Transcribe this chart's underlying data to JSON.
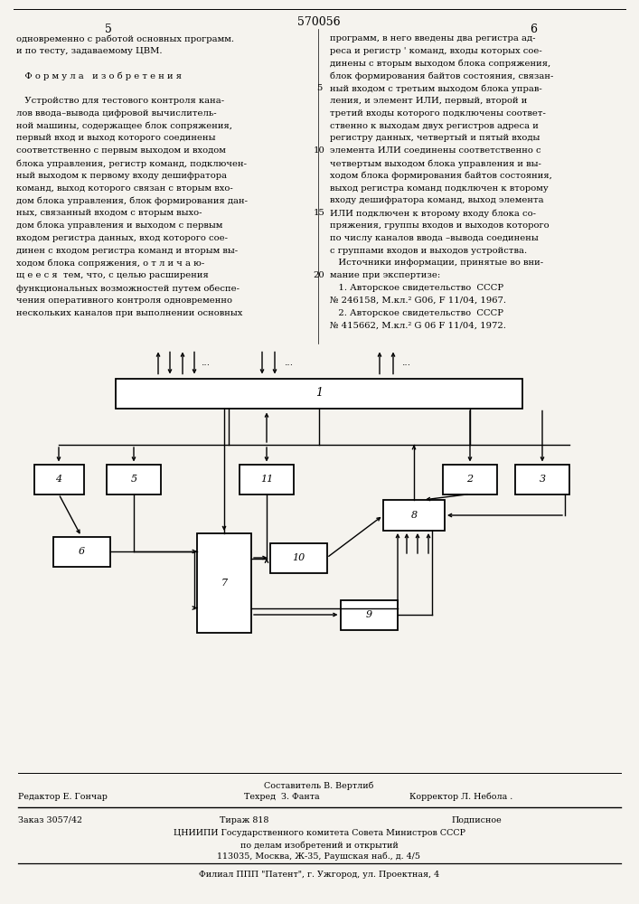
{
  "bg_color": "#f5f3ee",
  "page_number": "570056",
  "page_left": "5",
  "page_right": "6",
  "text_left_col": [
    "одновременно с работой основных программ.",
    "и по тесту, задаваемому ЦВМ.",
    "",
    "   Ф о р м у л а   и з о б р е т е н и я",
    "",
    "   Устройство для тестового контроля кана-",
    "лов ввода–вывода цифровой вычислитель-",
    "ной машины, содержащее блок сопряжения,",
    "первый вход и выход которого соединены",
    "соответственно с первым выходом и входом",
    "блока управления, регистр команд, подключен-",
    "ный выходом к первому входу дешифратора",
    "команд, выход которого связан с вторым вхо-",
    "дом блока управления, блок формирования дан-",
    "ных, связанный входом с вторым выхо-",
    "дом блока управления и выходом с первым",
    "входом регистра данных, вход которого сое-",
    "динен с входом регистра команд и вторым вы-",
    "ходом блока сопряжения, о т л и ч а ю-",
    "щ е е с я  тем, что, с целью расширения",
    "функциональных возможностей путем обеспе-",
    "чения оперативного контроля одновременно",
    "нескольких каналов при выполнении основных"
  ],
  "text_right_col": [
    "программ, в него введены два регистра ад-",
    "реса и регистр ' команд, входы которых сое-",
    "динены с вторым выходом блока сопряжения,",
    "блок формирования байтов состояния, связан-",
    "ный входом с третьим выходом блока управ-",
    "ления, и элемент ИЛИ, первый, второй и",
    "третий входы которого подключены соответ-",
    "ственно к выходам двух регистров адреса и",
    "регистру данных, четвертый и пятый входы",
    "элемента ИЛИ соединены соответственно с",
    "четвертым выходом блока управления и вы-",
    "ходом блока формирования байтов состояния,",
    "выход регистра команд подключен к второму",
    "входу дешифратора команд, выход элемента",
    "ИЛИ подключен к второму входу блока со-",
    "пряжения, группы входов и выходов которого",
    "по числу каналов ввода –вывода соединены",
    "с группами входов и выходов устройства.",
    "   Источники информации, принятые во вни-",
    "мание при экспертизе:",
    "   1. Авторское свидетельство  СССР",
    "№ 246158, М.кл.² G06, F 11/04, 1967.",
    "   2. Авторское свидетельство  СССР",
    "№ 415662, М.кл.² G 06 F 11/04, 1972."
  ],
  "line_numbers": {
    "4": "5",
    "9": "10",
    "14": "15",
    "19": "20"
  },
  "footer_author": "Составитель В. Вертлиб",
  "footer_editor": "Редактор Е. Гончар",
  "footer_tech": "Техред  З. Фанта",
  "footer_corrector": "Корректор Л. Небола .",
  "footer_order": "Заказ 3057/42",
  "footer_edition": "Тираж 818",
  "footer_subscription": "Подписное",
  "footer_org": "ЦНИИПИ Государственного комитета Совета Министров СССР",
  "footer_org2": "по делам изобретений и открытий",
  "footer_address": "113035, Москва, Ж-35, Раушская наб., д. 4/5",
  "footer_branch": "Филиал ППП \"Патент\", г. Ужгород, ул. Проектная, 4"
}
